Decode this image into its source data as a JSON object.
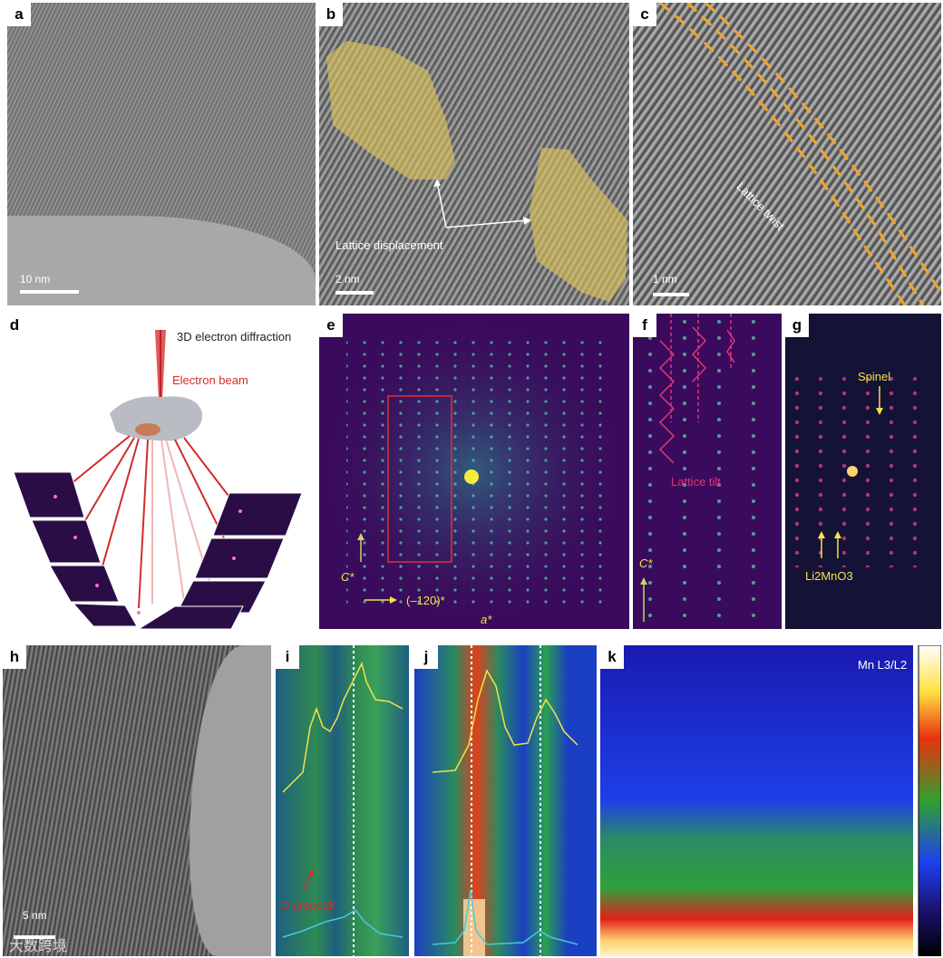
{
  "panels": {
    "a": {
      "label": "a",
      "scale": "10 nm"
    },
    "b": {
      "label": "b",
      "scale": "2 nm",
      "annotation": "Lattice displacement"
    },
    "c": {
      "label": "c",
      "scale": "1 nm",
      "annotation": "Lattice twist"
    },
    "d": {
      "label": "d",
      "title": "3D electron diffraction",
      "beam": "Electron beam"
    },
    "e": {
      "label": "e",
      "axis_c": "C*",
      "axis_120": "(–120)*",
      "axis_a": "a*"
    },
    "f": {
      "label": "f",
      "annotation": "Lattice tilt",
      "axis_c": "C*"
    },
    "g": {
      "label": "g",
      "spinel": "Spinel",
      "li2mno3": "Li2MnO3"
    },
    "h": {
      "label": "h",
      "scale": "5 nm"
    },
    "i": {
      "label": "i",
      "annotation": "O prepeak"
    },
    "j": {
      "label": "j"
    },
    "k": {
      "label": "k",
      "title": "Mn L3/L2"
    }
  },
  "watermark": "大数跨境",
  "colors": {
    "yellow": "#f2e34b",
    "pink": "#e0357d",
    "red": "#d92b2b",
    "diffraction_bg": "#3a0b5c"
  }
}
